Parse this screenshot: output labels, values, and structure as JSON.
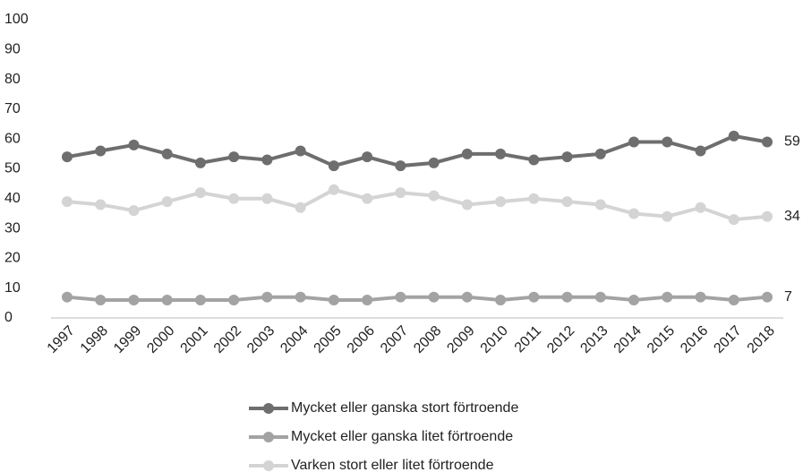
{
  "chart_data": {
    "type": "line",
    "categories": [
      "1997",
      "1998",
      "1999",
      "2000",
      "2001",
      "2002",
      "2003",
      "2004",
      "2005",
      "2006",
      "2007",
      "2008",
      "2009",
      "2010",
      "2011",
      "2012",
      "2013",
      "2014",
      "2015",
      "2016",
      "2017",
      "2018"
    ],
    "series": [
      {
        "name": "Mycket eller ganska stort förtroende",
        "color": "#6e6e6e",
        "values": [
          54,
          56,
          58,
          55,
          52,
          54,
          53,
          56,
          51,
          54,
          51,
          52,
          55,
          55,
          53,
          54,
          55,
          59,
          59,
          56,
          61,
          59
        ]
      },
      {
        "name": "Mycket eller ganska litet förtroende",
        "color": "#a3a3a3",
        "values": [
          7,
          6,
          6,
          6,
          6,
          6,
          7,
          7,
          6,
          6,
          7,
          7,
          7,
          6,
          7,
          7,
          7,
          6,
          7,
          7,
          6,
          7
        ]
      },
      {
        "name": "Varken stort eller litet förtroende",
        "color": "#d4d4d4",
        "values": [
          39,
          38,
          36,
          39,
          42,
          40,
          40,
          37,
          43,
          40,
          42,
          41,
          38,
          39,
          40,
          39,
          38,
          35,
          34,
          37,
          33,
          34
        ]
      }
    ],
    "ylim": [
      0,
      100
    ],
    "yticks": [
      0,
      10,
      20,
      30,
      40,
      50,
      60,
      70,
      80,
      90,
      100
    ],
    "grid": false,
    "legend": "bottom"
  }
}
